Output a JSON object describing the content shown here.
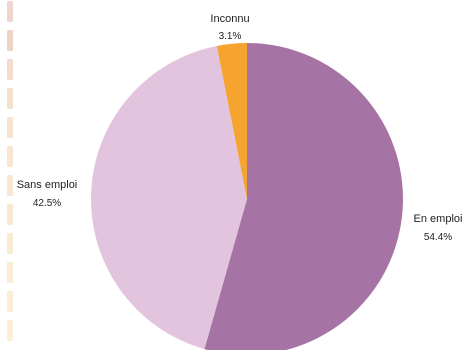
{
  "colors": {
    "dash_strip": [
      "#efd7cf",
      "#f0d3c8",
      "#f2dccd",
      "#f4e0cf",
      "#f5e4d2",
      "#f6e6d3",
      "#f7e8d4",
      "#f8eacf",
      "#f9ebd1",
      "#f9edd3",
      "#faeed5",
      "#fbf0d7"
    ]
  },
  "chart_data": {
    "type": "pie",
    "title": "",
    "slices": [
      {
        "label": "En emploi",
        "value": 54.4,
        "value_label": "54.4%",
        "color": "#a673a5"
      },
      {
        "label": "Sans emploi",
        "value": 42.5,
        "value_label": "42.5%",
        "color": "#e2c4de"
      },
      {
        "label": "Inconnu",
        "value": 3.1,
        "value_label": "3.1%",
        "color": "#f5a42f"
      }
    ],
    "start_angle": "12 o'clock",
    "direction": "clockwise",
    "legend": "none"
  }
}
